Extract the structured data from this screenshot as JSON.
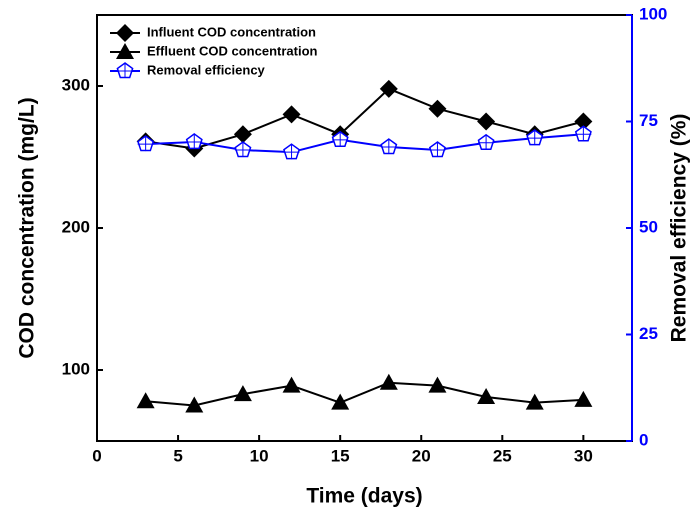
{
  "chart_data": {
    "type": "line",
    "x": [
      3,
      6,
      9,
      12,
      15,
      18,
      21,
      24,
      27,
      30
    ],
    "xlabel": "Time (days)",
    "ylabel": "COD concentration (mg/L)",
    "y2label": "Removal efficiency (%)",
    "xlim": [
      0,
      33
    ],
    "xticks": [
      0,
      5,
      10,
      15,
      20,
      25,
      30
    ],
    "ylim": [
      50,
      350
    ],
    "yticks": [
      100,
      200,
      300
    ],
    "y2lim": [
      0,
      100
    ],
    "y2ticks": [
      0,
      25,
      50,
      75,
      100
    ],
    "y2color": "#0000ff",
    "legend": "upper left",
    "series": [
      {
        "name": "Influent COD concentration",
        "color": "#000000",
        "marker": "diamond",
        "values": [
          261,
          256,
          266,
          280,
          266,
          298,
          284,
          275,
          266,
          275
        ]
      },
      {
        "name": "Effluent COD concentration",
        "color": "#000000",
        "marker": "triangle",
        "values": [
          78,
          75,
          83,
          89,
          77,
          91,
          89,
          81,
          77,
          79
        ]
      },
      {
        "name": "Removal efficiency",
        "color": "#0000ff",
        "marker": "pentagon",
        "axis": "y2",
        "values": [
          69.7,
          70.2,
          68.3,
          67.8,
          70.7,
          69,
          68.3,
          70,
          71.1,
          72
        ]
      }
    ]
  }
}
